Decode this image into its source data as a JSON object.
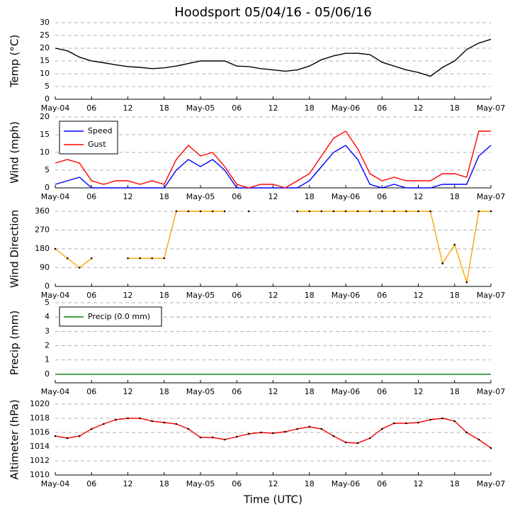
{
  "chart_data": [
    {
      "type": "line",
      "title": "Hoodsport 05/04/16 - 05/06/16",
      "ylabel": "Temp (°C)",
      "x": [
        0,
        2,
        4,
        6,
        8,
        10,
        12,
        14,
        16,
        18,
        20,
        22,
        24,
        26,
        28,
        30,
        32,
        34,
        36,
        38,
        40,
        42,
        44,
        46,
        48,
        50,
        52,
        54,
        56,
        58,
        60,
        62,
        64,
        66,
        68,
        70,
        72
      ],
      "series": [
        {
          "color": "#000000",
          "values": [
            20,
            19,
            16.5,
            15,
            14.3,
            13.5,
            12.8,
            12.5,
            12,
            12.3,
            13,
            14,
            15,
            15,
            15,
            13,
            12.8,
            12,
            11.5,
            11,
            11.5,
            13,
            15.5,
            17,
            18,
            18,
            17.5,
            14.5,
            13,
            11.5,
            10.5,
            9,
            12.5,
            15,
            19.5,
            22,
            23.5
          ]
        }
      ],
      "xlim": [
        0,
        72
      ],
      "xticks": [
        {
          "value": 0,
          "label": "May-04"
        },
        {
          "value": 6,
          "label": "06"
        },
        {
          "value": 12,
          "label": "12"
        },
        {
          "value": 18,
          "label": "18"
        },
        {
          "value": 24,
          "label": "May-05"
        },
        {
          "value": 30,
          "label": "06"
        },
        {
          "value": 36,
          "label": "12"
        },
        {
          "value": 42,
          "label": "18"
        },
        {
          "value": 48,
          "label": "May-06"
        },
        {
          "value": 54,
          "label": "06"
        },
        {
          "value": 60,
          "label": "12"
        },
        {
          "value": 66,
          "label": "18"
        },
        {
          "value": 72,
          "label": "May-07"
        }
      ],
      "ylim": [
        0,
        30
      ],
      "yticks": [
        0,
        5,
        10,
        15,
        20,
        25,
        30
      ],
      "grid": true
    },
    {
      "type": "line",
      "ylabel": "Wind (mph)",
      "x": [
        0,
        2,
        4,
        6,
        8,
        10,
        12,
        14,
        16,
        18,
        20,
        22,
        24,
        26,
        28,
        30,
        32,
        34,
        36,
        38,
        40,
        42,
        44,
        46,
        48,
        50,
        52,
        54,
        56,
        58,
        60,
        62,
        64,
        66,
        68,
        70,
        72
      ],
      "series": [
        {
          "name": "Speed",
          "color": "#0000ff",
          "values": [
            1,
            2,
            3,
            0,
            0,
            0,
            0,
            0,
            0,
            0,
            5,
            8,
            6,
            8,
            5,
            0,
            0,
            0,
            0,
            0,
            0,
            2,
            6,
            10,
            12,
            8,
            1,
            0,
            1,
            0,
            0,
            0,
            1,
            1,
            1,
            9,
            12
          ]
        },
        {
          "name": "Gust",
          "color": "#ff0000",
          "values": [
            7,
            8,
            7,
            2,
            1,
            2,
            2,
            1,
            2,
            1,
            8,
            12,
            9,
            10,
            6,
            1,
            0,
            1,
            1,
            0,
            2,
            4,
            9,
            14,
            16,
            11,
            4,
            2,
            3,
            2,
            2,
            2,
            4,
            4,
            3,
            16,
            16
          ]
        }
      ],
      "xlim": [
        0,
        72
      ],
      "xticks": [
        {
          "value": 0,
          "label": "May-04"
        },
        {
          "value": 6,
          "label": "06"
        },
        {
          "value": 12,
          "label": "12"
        },
        {
          "value": 18,
          "label": "18"
        },
        {
          "value": 24,
          "label": "May-05"
        },
        {
          "value": 30,
          "label": "06"
        },
        {
          "value": 36,
          "label": "12"
        },
        {
          "value": 42,
          "label": "18"
        },
        {
          "value": 48,
          "label": "May-06"
        },
        {
          "value": 54,
          "label": "06"
        },
        {
          "value": 60,
          "label": "12"
        },
        {
          "value": 66,
          "label": "18"
        },
        {
          "value": 72,
          "label": "May-07"
        }
      ],
      "ylim": [
        0,
        20
      ],
      "yticks": [
        0,
        5,
        10,
        15,
        20
      ],
      "grid": true,
      "legend": "upper left"
    },
    {
      "type": "line",
      "ylabel": "Wind Direction",
      "x": [
        0,
        2,
        4,
        6,
        8,
        10,
        12,
        14,
        16,
        18,
        20,
        22,
        24,
        26,
        28,
        30,
        32,
        34,
        36,
        38,
        40,
        42,
        44,
        46,
        48,
        50,
        52,
        54,
        56,
        58,
        60,
        62,
        64,
        66,
        68,
        70,
        72
      ],
      "series": [
        {
          "color": "#ffa500",
          "marker_color": "#000000",
          "values": [
            180,
            135,
            90,
            135,
            null,
            null,
            135,
            135,
            135,
            135,
            360,
            360,
            360,
            360,
            360,
            null,
            360,
            null,
            null,
            null,
            360,
            360,
            360,
            360,
            360,
            360,
            360,
            360,
            360,
            360,
            360,
            360,
            110,
            200,
            20,
            360,
            360
          ]
        }
      ],
      "xlim": [
        0,
        72
      ],
      "xticks": [
        {
          "value": 0,
          "label": "May-04"
        },
        {
          "value": 6,
          "label": "06"
        },
        {
          "value": 12,
          "label": "12"
        },
        {
          "value": 18,
          "label": "18"
        },
        {
          "value": 24,
          "label": "May-05"
        },
        {
          "value": 30,
          "label": "06"
        },
        {
          "value": 36,
          "label": "12"
        },
        {
          "value": 42,
          "label": "18"
        },
        {
          "value": 48,
          "label": "May-06"
        },
        {
          "value": 54,
          "label": "06"
        },
        {
          "value": 60,
          "label": "12"
        },
        {
          "value": 66,
          "label": "18"
        },
        {
          "value": 72,
          "label": "May-07"
        }
      ],
      "ylim": [
        0,
        360
      ],
      "yticks": [
        0,
        90,
        180,
        270,
        360
      ],
      "grid": true
    },
    {
      "type": "line",
      "ylabel": "Precip (mm)",
      "x": [
        0,
        2,
        4,
        6,
        8,
        10,
        12,
        14,
        16,
        18,
        20,
        22,
        24,
        26,
        28,
        30,
        32,
        34,
        36,
        38,
        40,
        42,
        44,
        46,
        48,
        50,
        52,
        54,
        56,
        58,
        60,
        62,
        64,
        66,
        68,
        70,
        72
      ],
      "series": [
        {
          "name": "Precip (0.0 mm)",
          "color": "#008000",
          "values": [
            0,
            0,
            0,
            0,
            0,
            0,
            0,
            0,
            0,
            0,
            0,
            0,
            0,
            0,
            0,
            0,
            0,
            0,
            0,
            0,
            0,
            0,
            0,
            0,
            0,
            0,
            0,
            0,
            0,
            0,
            0,
            0,
            0,
            0,
            0,
            0,
            0
          ]
        }
      ],
      "xlim": [
        0,
        72
      ],
      "xticks": [
        {
          "value": 0,
          "label": "May-04"
        },
        {
          "value": 6,
          "label": "06"
        },
        {
          "value": 12,
          "label": "12"
        },
        {
          "value": 18,
          "label": "18"
        },
        {
          "value": 24,
          "label": "May-05"
        },
        {
          "value": 30,
          "label": "06"
        },
        {
          "value": 36,
          "label": "12"
        },
        {
          "value": 42,
          "label": "18"
        },
        {
          "value": 48,
          "label": "May-06"
        },
        {
          "value": 54,
          "label": "06"
        },
        {
          "value": 60,
          "label": "12"
        },
        {
          "value": 66,
          "label": "18"
        },
        {
          "value": 72,
          "label": "May-07"
        }
      ],
      "ylim": [
        -0.6,
        5
      ],
      "yticks": [
        0,
        1,
        2,
        3,
        4,
        5
      ],
      "grid": true,
      "legend": "upper left"
    },
    {
      "type": "line",
      "ylabel": "Altimeter (hPa)",
      "xlabel": "Time (UTC)",
      "x": [
        0,
        2,
        4,
        6,
        8,
        10,
        12,
        14,
        16,
        18,
        20,
        22,
        24,
        26,
        28,
        30,
        32,
        34,
        36,
        38,
        40,
        42,
        44,
        46,
        48,
        50,
        52,
        54,
        56,
        58,
        60,
        62,
        64,
        66,
        68,
        70,
        72
      ],
      "series": [
        {
          "color": "#ff0000",
          "marker_color": "#000000",
          "values": [
            1015.5,
            1015.2,
            1015.5,
            1016.5,
            1017.2,
            1017.8,
            1018,
            1018,
            1017.6,
            1017.4,
            1017.2,
            1016.5,
            1015.3,
            1015.3,
            1015,
            1015.4,
            1015.8,
            1016,
            1015.9,
            1016.1,
            1016.5,
            1016.8,
            1016.5,
            1015.5,
            1014.6,
            1014.5,
            1015.2,
            1016.5,
            1017.3,
            1017.3,
            1017.4,
            1017.8,
            1018,
            1017.6,
            1016,
            1015,
            1013.8
          ]
        }
      ],
      "xlim": [
        0,
        72
      ],
      "xticks": [
        {
          "value": 0,
          "label": "May-04"
        },
        {
          "value": 6,
          "label": "06"
        },
        {
          "value": 12,
          "label": "12"
        },
        {
          "value": 18,
          "label": "18"
        },
        {
          "value": 24,
          "label": "May-05"
        },
        {
          "value": 30,
          "label": "06"
        },
        {
          "value": 36,
          "label": "12"
        },
        {
          "value": 42,
          "label": "18"
        },
        {
          "value": 48,
          "label": "May-06"
        },
        {
          "value": 54,
          "label": "06"
        },
        {
          "value": 60,
          "label": "12"
        },
        {
          "value": 66,
          "label": "18"
        },
        {
          "value": 72,
          "label": "May-07"
        }
      ],
      "ylim": [
        1010,
        1020
      ],
      "yticks": [
        1010,
        1012,
        1014,
        1016,
        1018,
        1020
      ],
      "grid": true
    }
  ]
}
